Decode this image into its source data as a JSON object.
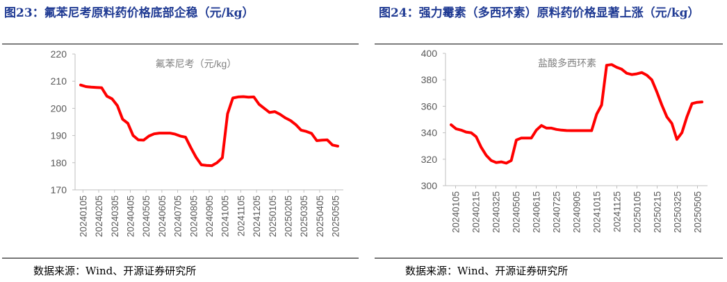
{
  "figures": [
    {
      "title": "图23：氟苯尼考原料药价格底部企稳（元/kg）",
      "source": "数据来源：Wind、开源证券研究所",
      "chart_data": {
        "type": "line",
        "title": "",
        "series": [
          {
            "name": "氟苯尼考（元/kg）",
            "values": [
              208.6,
              208.0,
              207.8,
              207.7,
              207.6,
              204.5,
              203.5,
              201.0,
              196.0,
              194.5,
              190.0,
              188.4,
              188.3,
              189.8,
              190.6,
              190.9,
              190.9,
              190.9,
              190.5,
              189.8,
              189.4,
              185.5,
              182.0,
              179.2,
              179.0,
              178.9,
              180.0,
              181.8,
              198.0,
              203.8,
              204.2,
              204.3,
              204.1,
              204.2,
              201.5,
              200.0,
              198.5,
              198.8,
              197.8,
              196.5,
              195.5,
              194.0,
              192.0,
              191.5,
              190.8,
              188.1,
              188.3,
              188.4,
              186.5,
              186.1
            ],
            "color": "#ff0000"
          }
        ],
        "xlabel": "",
        "ylabel": "",
        "ylim": [
          170,
          220
        ],
        "yticks": [
          170,
          180,
          190,
          200,
          210,
          220
        ],
        "xtick_labels": [
          "20240105",
          "20240205",
          "20240305",
          "20240405",
          "20240505",
          "20240605",
          "20240705",
          "20240805",
          "20240905",
          "20241005",
          "20241105",
          "20241205",
          "20250105",
          "20250205",
          "20250305",
          "20250405",
          "20250505"
        ],
        "legend": "top-center",
        "grid": false
      }
    },
    {
      "title": "图24：强力霉素（多西环素）原料药价格显著上涨（元/kg）",
      "source": "数据来源：Wind、开源证券研究所",
      "chart_data": {
        "type": "line",
        "title": "",
        "series": [
          {
            "name": "盐酸多西环素",
            "values": [
              346,
              343,
              342,
              340.5,
              340,
              337,
              329,
              323,
              319,
              317.5,
              318,
              317,
              319,
              334.5,
              336,
              336,
              336,
              342,
              345.5,
              343.5,
              343.5,
              342.5,
              342,
              341.7,
              341.6,
              341.6,
              341.6,
              341.6,
              341.6,
              354,
              361,
              391,
              391.5,
              389.5,
              388,
              385,
              384,
              384.5,
              385.5,
              383.5,
              380,
              371,
              361,
              352,
              347,
              335,
              340,
              352,
              362,
              363,
              363.3
            ],
            "color": "#ff0000"
          }
        ],
        "xlabel": "",
        "ylabel": "",
        "ylim": [
          300,
          400
        ],
        "yticks": [
          300,
          320,
          340,
          360,
          380,
          400
        ],
        "xtick_labels": [
          "20240105",
          "20240215",
          "20240325",
          "20240505",
          "20240615",
          "20240725",
          "20240905",
          "20241015",
          "20241125",
          "20250105",
          "20250215",
          "20250325",
          "20250505"
        ],
        "legend": "top-center",
        "grid": false
      }
    }
  ]
}
